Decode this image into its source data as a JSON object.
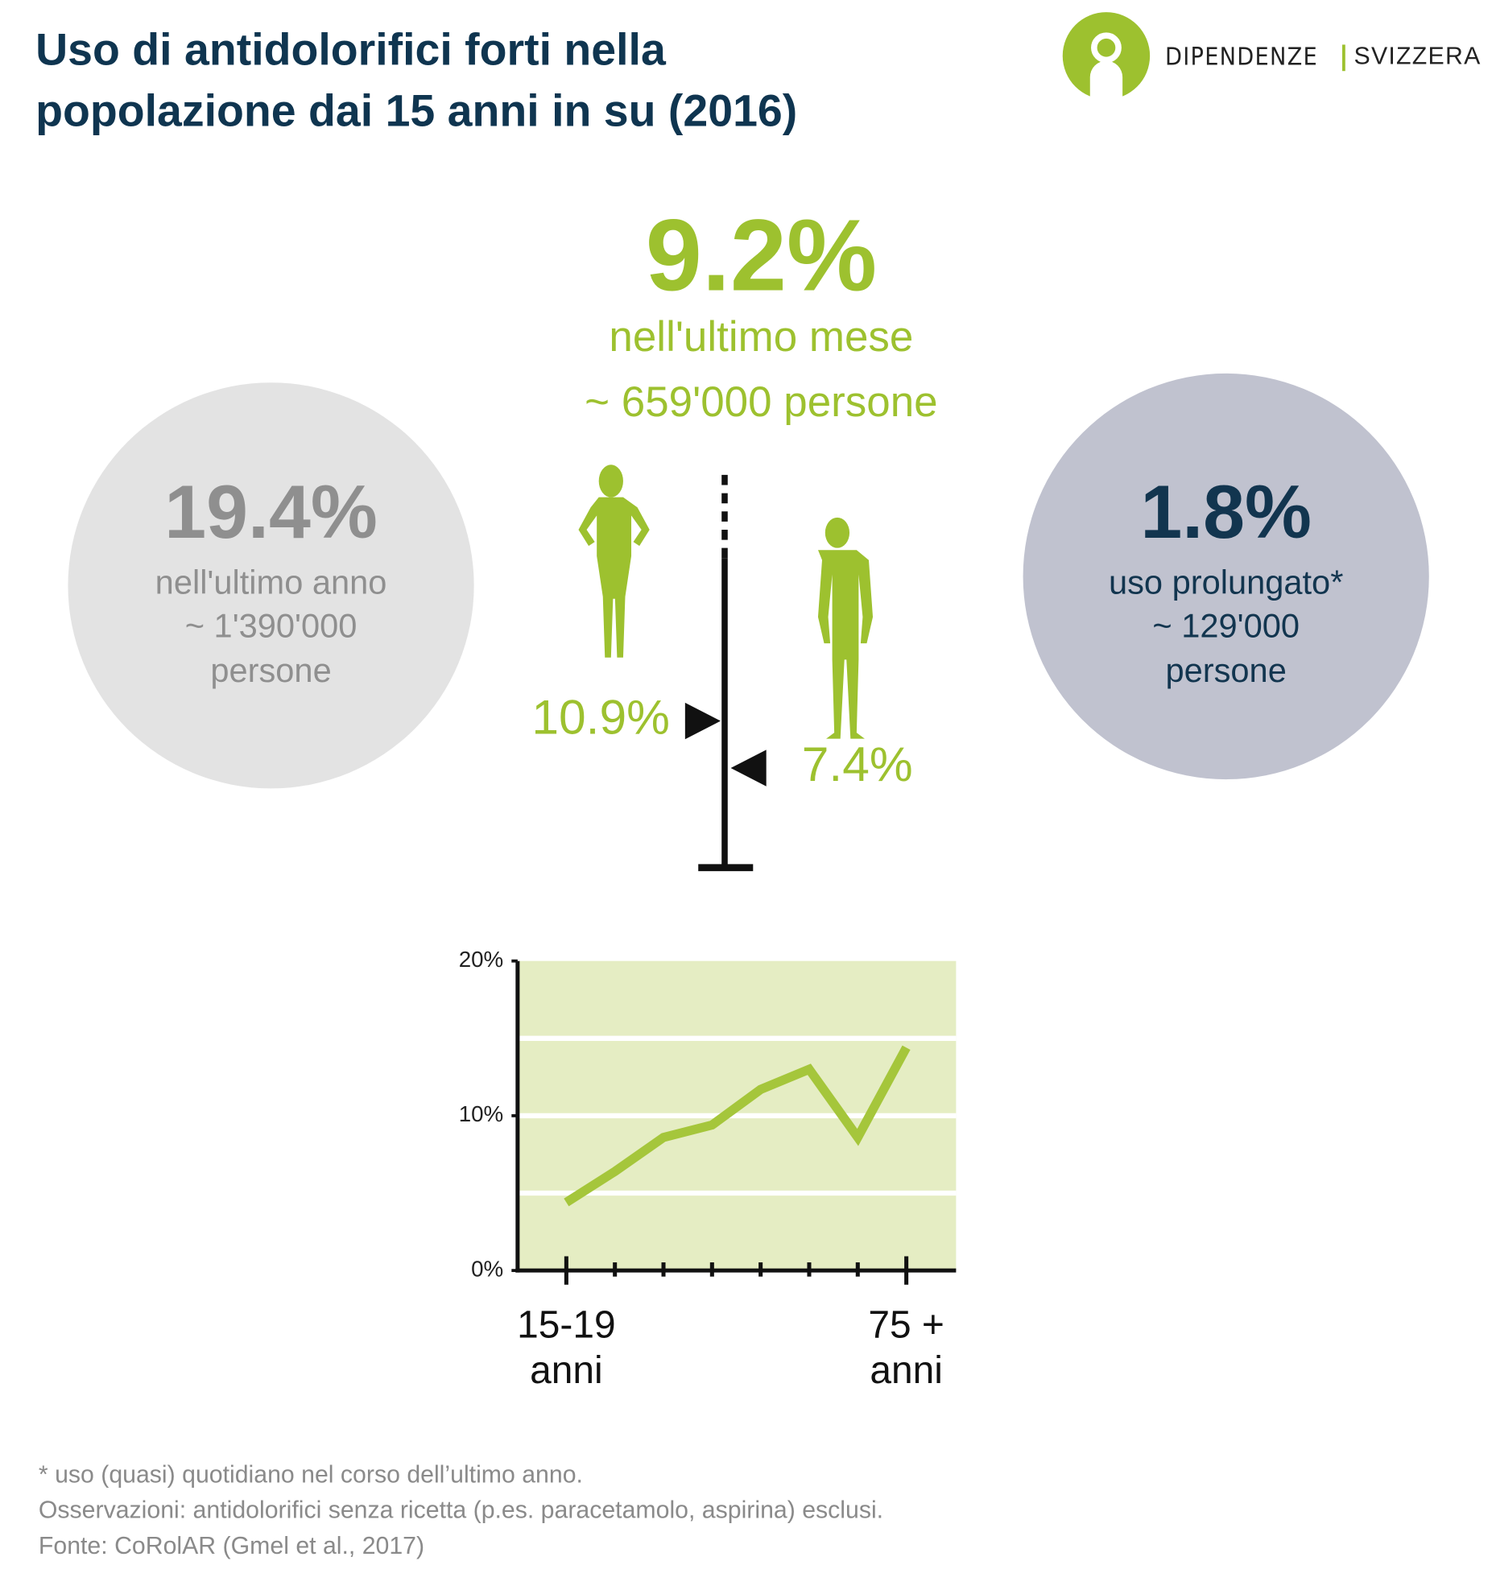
{
  "header": {
    "title": "Uso di antidolorifici forti nella\npopolazione dai 15 anni in su (2016)",
    "logo": [
      "DIPENDENZE",
      "SVIZZERA"
    ]
  },
  "monthly": {
    "value": "9.2%",
    "label": "nell'ultimo mese",
    "people": "~ 659'000 persone"
  },
  "yearly": {
    "value": "19.4%",
    "lines": [
      "nell'ultimo anno",
      "~ 1'390'000",
      "persone"
    ]
  },
  "prolonged": {
    "value": "1.8%",
    "lines": [
      "uso prolungato*",
      "~ 129'000",
      "persone"
    ]
  },
  "chart_data": [
    {
      "type": "marker",
      "values": [
        10.9,
        7.4
      ],
      "value_labels": [
        "10.9%",
        "7.4%"
      ],
      "ylim": [
        0,
        23
      ],
      "color": "#9dc12f"
    },
    {
      "type": "line",
      "categories": [
        "15-19\nanni",
        null,
        null,
        null,
        null,
        null,
        null,
        "75 +\nanni"
      ],
      "values": [
        4.4,
        6.4,
        8.6,
        9.4,
        11.7,
        13.0,
        8.6,
        14.4
      ],
      "color": "#a5c63b",
      "ylim": [
        0,
        20
      ],
      "yticks": [
        {
          "value": 0,
          "label": "0%"
        },
        {
          "value": 10,
          "label": "10%"
        },
        {
          "value": 20,
          "label": "20%"
        }
      ],
      "grid_lines": [
        5,
        10,
        15
      ]
    }
  ],
  "footnotes": [
    "* uso (quasi) quotidiano nel corso dell’ultimo anno.",
    "Osservazioni: antidolorifici senza ricetta (p.es. paracetamolo, aspirina) esclusi.",
    "Fonte: CoRolAR (Gmel et al., 2017)"
  ]
}
